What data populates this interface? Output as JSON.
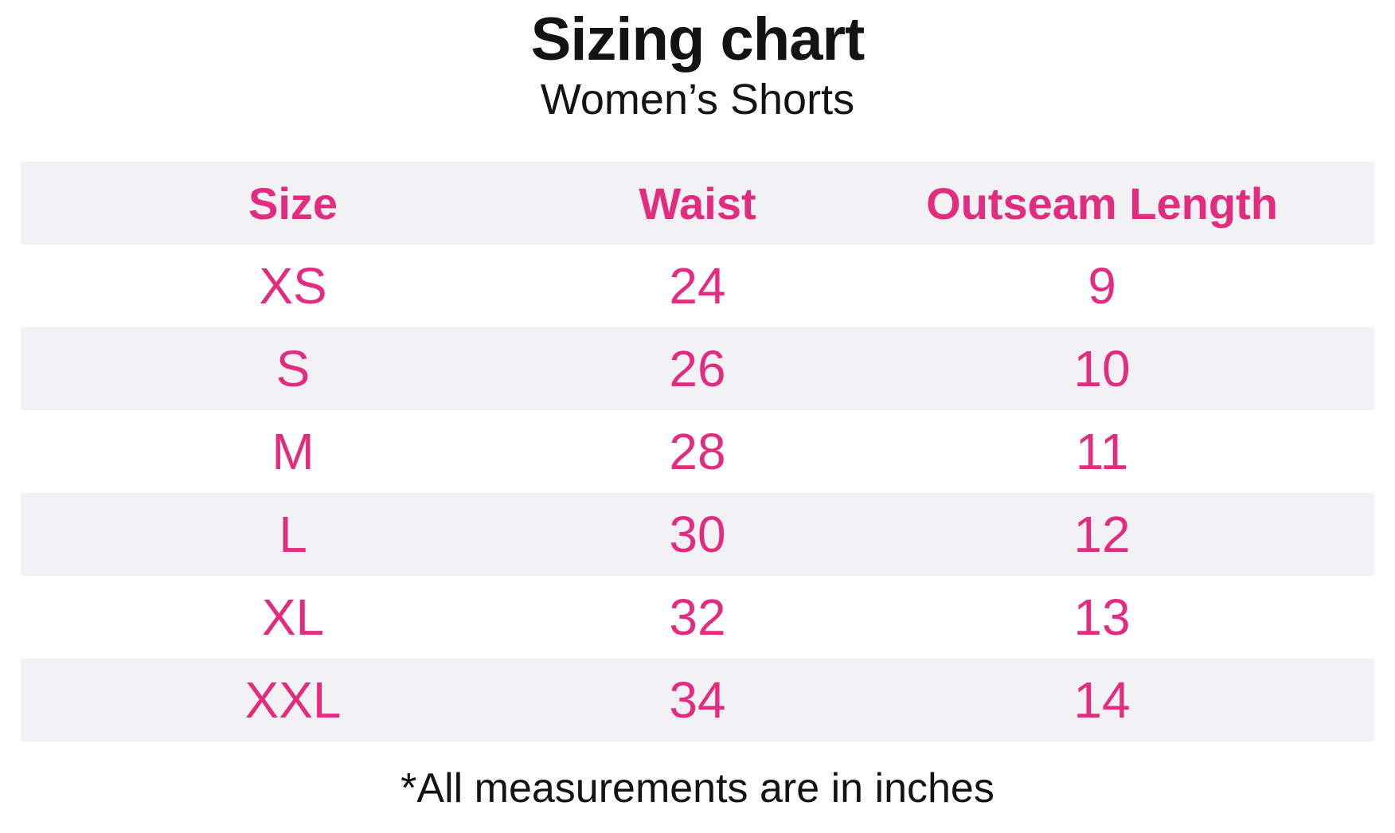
{
  "title": "Sizing chart",
  "subtitle": "Women’s Shorts",
  "footnote": "*All measurements are in inches",
  "colors": {
    "accent_pink": "#e22c80",
    "row_stripe_bg": "#f2f2f4",
    "text_color": "#131313"
  },
  "table": {
    "headers": [
      "Size",
      "Waist",
      "Outseam Length"
    ],
    "rows": [
      [
        "XS",
        "24",
        "9"
      ],
      [
        "S",
        "26",
        "10"
      ],
      [
        "M",
        "28",
        "11"
      ],
      [
        "L",
        "30",
        "12"
      ],
      [
        "XL",
        "32",
        "13"
      ],
      [
        "XXL",
        "34",
        "14"
      ]
    ]
  },
  "chart_data": {
    "type": "table",
    "title": "Sizing chart",
    "subtitle": "Women’s Shorts",
    "columns": [
      "Size",
      "Waist",
      "Outseam Length"
    ],
    "rows": [
      {
        "size": "XS",
        "waist": 24,
        "outseam_length": 9
      },
      {
        "size": "S",
        "waist": 26,
        "outseam_length": 10
      },
      {
        "size": "M",
        "waist": 28,
        "outseam_length": 11
      },
      {
        "size": "L",
        "waist": 30,
        "outseam_length": 12
      },
      {
        "size": "XL",
        "waist": 32,
        "outseam_length": 13
      },
      {
        "size": "XXL",
        "waist": 34,
        "outseam_length": 14
      }
    ],
    "units": "inches",
    "note": "*All measurements are in inches",
    "layout": {
      "striped_rows": true,
      "header_background": "#f2f2f4",
      "text_color": "#e22c80"
    }
  }
}
